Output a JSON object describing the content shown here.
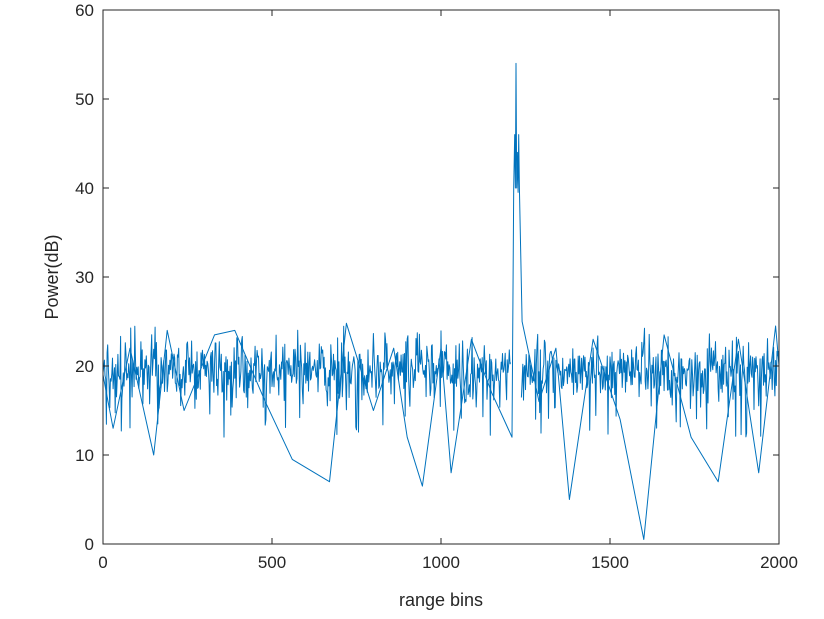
{
  "chart_data": {
    "type": "line",
    "title": "",
    "xlabel": "range bins",
    "ylabel": "Power(dB)",
    "xlim": [
      0,
      2000
    ],
    "ylim": [
      0,
      60
    ],
    "xticks": [
      0,
      500,
      1000,
      1500,
      2000
    ],
    "yticks": [
      0,
      10,
      20,
      30,
      40,
      50,
      60
    ],
    "grid": false,
    "legend": "none",
    "series": [
      {
        "color": "#0072BD",
        "noise_floor_mean": 19.5,
        "noise_floor_range": [
          12,
          24.5
        ],
        "x": [
          0,
          30,
          80,
          150,
          190,
          240,
          330,
          390,
          480,
          560,
          670,
          720,
          800,
          860,
          900,
          945,
          1000,
          1030,
          1090,
          1150,
          1210,
          1215,
          1218,
          1220,
          1222,
          1224,
          1226,
          1228,
          1230,
          1232,
          1240,
          1290,
          1340,
          1380,
          1450,
          1530,
          1600,
          1660,
          1740,
          1820,
          1880,
          1940,
          1990,
          2000
        ],
        "y": [
          19,
          13,
          22,
          10,
          24,
          15,
          23.5,
          24,
          16,
          9.5,
          7,
          24.8,
          15,
          22,
          12,
          6.5,
          22,
          8,
          23,
          17,
          12,
          40,
          46,
          40,
          54,
          40,
          44,
          39.5,
          46,
          40,
          25,
          16,
          22,
          5,
          23,
          14,
          0.5,
          23.5,
          12,
          7,
          23,
          8,
          24.5,
          20
        ]
      }
    ]
  }
}
